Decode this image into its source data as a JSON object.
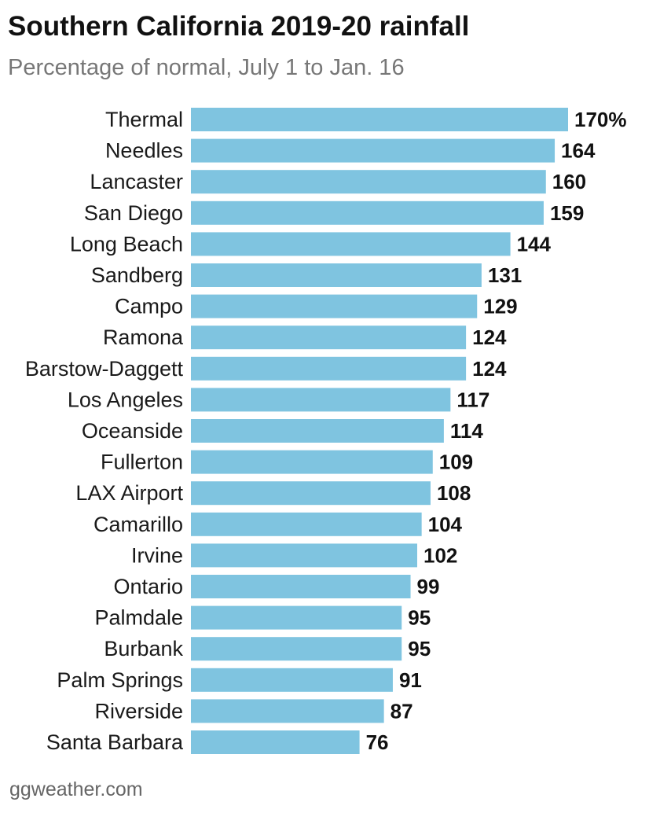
{
  "chart_data": {
    "type": "bar",
    "orientation": "horizontal",
    "title": "Southern California 2019-20 rainfall",
    "subtitle": "Percentage of normal, July 1 to Jan. 16",
    "categories": [
      "Thermal",
      "Needles",
      "Lancaster",
      "San Diego",
      "Long Beach",
      "Sandberg",
      "Campo",
      "Ramona",
      "Barstow-Daggett",
      "Los Angeles",
      "Oceanside",
      "Fullerton",
      "LAX Airport",
      "Camarillo",
      "Irvine",
      "Ontario",
      "Palmdale",
      "Burbank",
      "Palm Springs",
      "Riverside",
      "Santa Barbara"
    ],
    "values": [
      170,
      164,
      160,
      159,
      144,
      131,
      129,
      124,
      124,
      117,
      114,
      109,
      108,
      104,
      102,
      99,
      95,
      95,
      91,
      87,
      76
    ],
    "value_labels": [
      "170%",
      "164",
      "160",
      "159",
      "144",
      "131",
      "129",
      "124",
      "124",
      "117",
      "114",
      "109",
      "108",
      "104",
      "102",
      "99",
      "95",
      "95",
      "91",
      "87",
      "76"
    ],
    "xlim": [
      0,
      170
    ],
    "grid": false,
    "legend": "none",
    "colors": {
      "bar": "#7fc4e0",
      "label": "#1a1a1a",
      "value": "#111111"
    }
  },
  "source": "ggweather.com"
}
